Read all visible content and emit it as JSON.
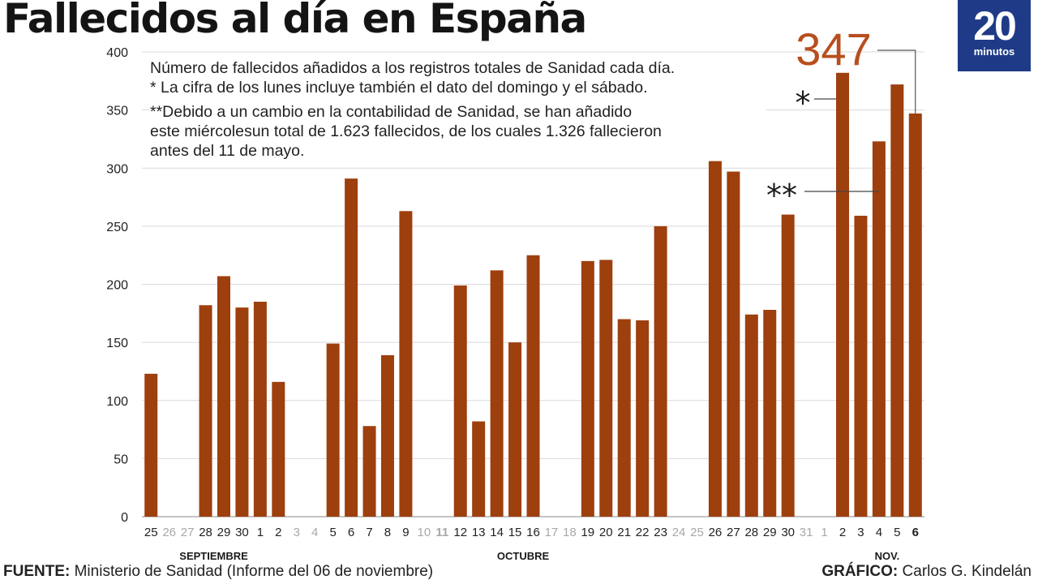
{
  "title": "Fallecidos al día en España",
  "logo": {
    "number": "20",
    "word": "minutos"
  },
  "notes": {
    "line1": "Número de fallecidos añadidos a los registros totales de Sanidad cada día.",
    "line2": "* La cifra de los lunes incluye también el dato del domingo y el sábado.",
    "line3": "**Debido a un cambio en la contabilidad de Sanidad, se han añadido",
    "line4": "este miércolesun total de 1.623 fallecidos, de los cuales 1.326 fallecieron",
    "line5": "antes del 11 de mayo."
  },
  "footer": {
    "source_label": "FUENTE:",
    "source_text": " Ministerio de Sanidad (Informe del 06 de noviembre)",
    "credit_label": "GRÁFICO:",
    "credit_text": " Carlos G. Kindelán"
  },
  "chart_data": {
    "type": "bar",
    "ylim": [
      0,
      400
    ],
    "yticks": [
      0,
      50,
      100,
      150,
      200,
      250,
      300,
      350,
      400
    ],
    "bar_color": "#9e3f0e",
    "categories": [
      "25",
      "26",
      "27",
      "28",
      "29",
      "30",
      "1",
      "2",
      "3",
      "4",
      "5",
      "6",
      "7",
      "8",
      "9",
      "10",
      "11",
      "12",
      "13",
      "14",
      "15",
      "16",
      "17",
      "18",
      "19",
      "20",
      "21",
      "22",
      "23",
      "24",
      "25",
      "26",
      "27",
      "28",
      "29",
      "30",
      "31",
      "1",
      "2",
      "3",
      "4",
      "5",
      "6"
    ],
    "values": [
      123,
      null,
      null,
      182,
      207,
      180,
      185,
      116,
      null,
      null,
      149,
      291,
      78,
      139,
      263,
      null,
      null,
      199,
      82,
      212,
      150,
      225,
      null,
      null,
      220,
      221,
      170,
      169,
      250,
      null,
      null,
      306,
      297,
      174,
      178,
      260,
      null,
      null,
      382,
      259,
      323,
      372,
      347
    ],
    "weekend_days": [
      1,
      2,
      8,
      9,
      15,
      16,
      22,
      23,
      29,
      30,
      36,
      37
    ],
    "bold_labels": [
      16,
      42
    ],
    "months": [
      "SEPTIEMBRE",
      "OCTUBRE",
      "NOV."
    ],
    "highlight": {
      "label": "347",
      "color": "#b84e1e"
    },
    "markers": {
      "single": "*",
      "double": "**"
    }
  }
}
